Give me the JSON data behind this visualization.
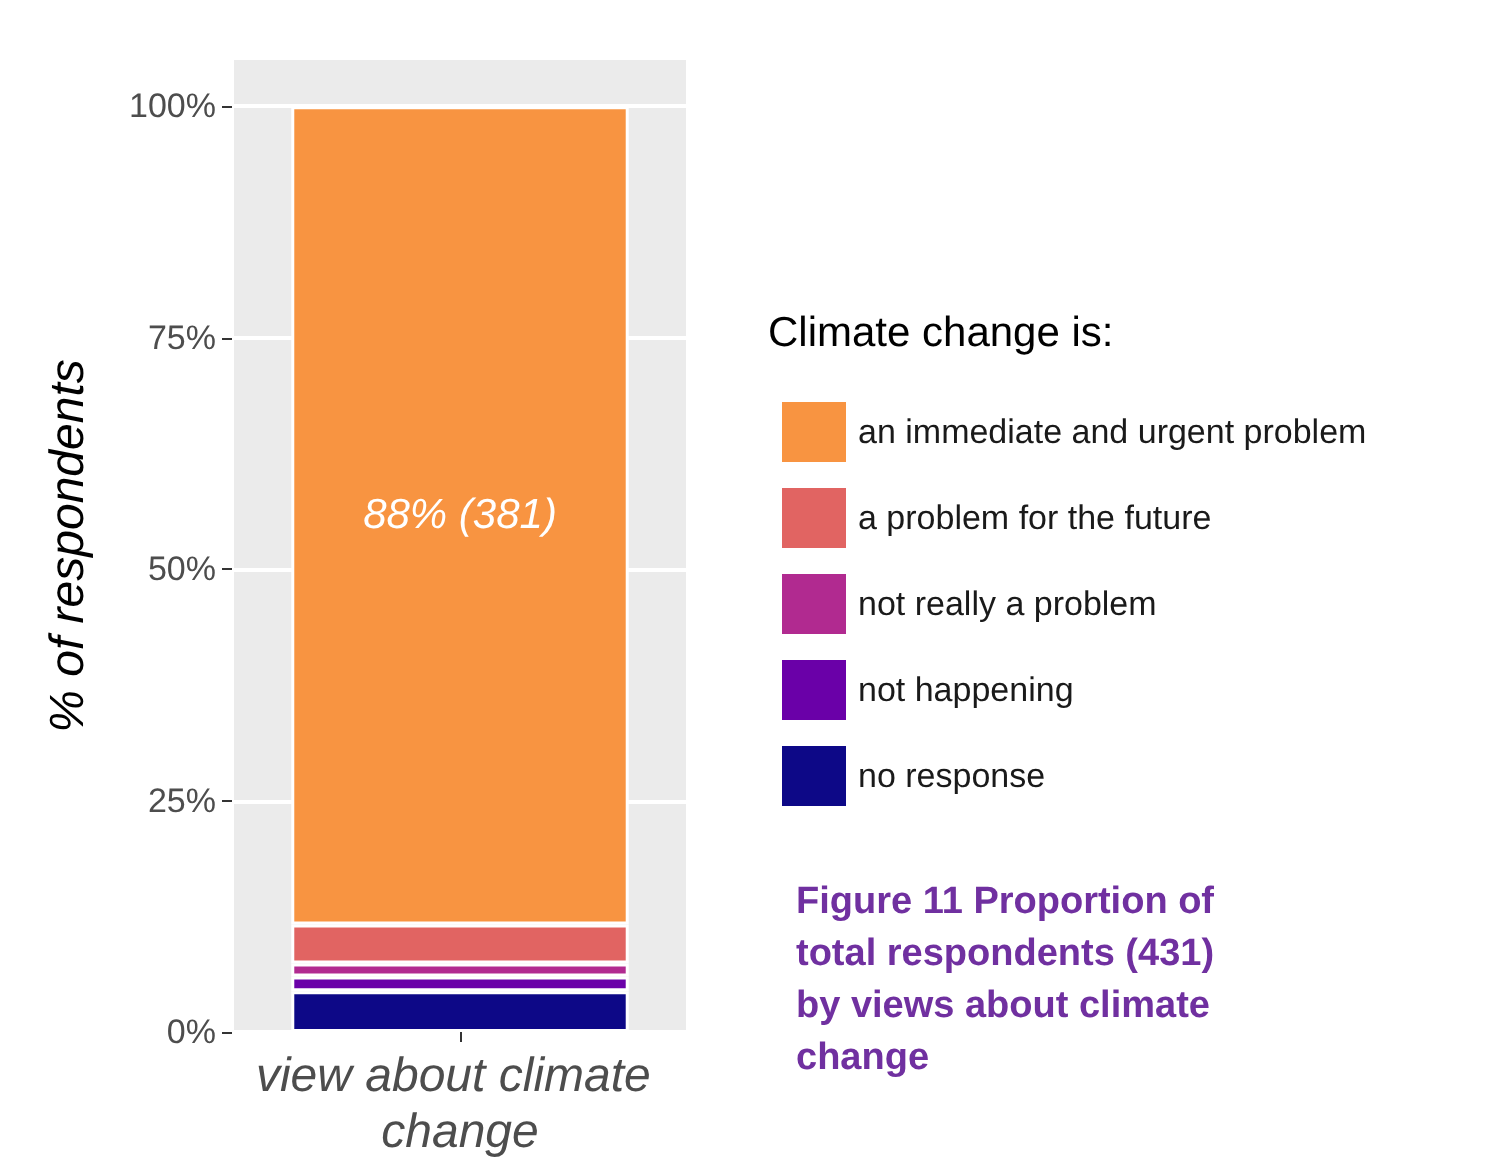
{
  "chart_data": {
    "type": "bar",
    "stacked": true,
    "categories": [
      "view about climate change"
    ],
    "series": [
      {
        "name": "no response",
        "color": "#0d0887",
        "values": [
          4.4
        ]
      },
      {
        "name": "not happening",
        "color": "#6a00a8",
        "values": [
          1.6
        ]
      },
      {
        "name": "not really a problem",
        "color": "#b12a90",
        "values": [
          1.4
        ]
      },
      {
        "name": "a problem for the future",
        "color": "#e16462",
        "values": [
          4.2
        ]
      },
      {
        "name": "an immediate and urgent problem",
        "color": "#f89441",
        "values": [
          88.4
        ],
        "value_labels": [
          "88% (381)"
        ]
      }
    ],
    "ylabel": "% of respondents",
    "legend_title": "Climate change is:",
    "ylim": [
      0,
      105
    ],
    "yticks": [
      {
        "value": 0,
        "label": "0%"
      },
      {
        "value": 25,
        "label": "25%"
      },
      {
        "value": 50,
        "label": "50%"
      },
      {
        "value": 75,
        "label": "75%"
      },
      {
        "value": 100,
        "label": "100%"
      }
    ],
    "grid": true,
    "legend": "right",
    "annotations": [
      "Figure 11 Proportion of total respondents (431) by views about climate change"
    ]
  }
}
